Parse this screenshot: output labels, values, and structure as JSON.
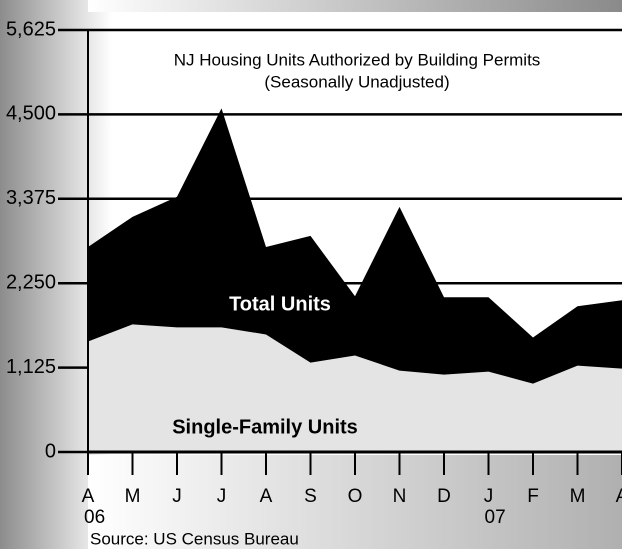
{
  "chart_data": {
    "type": "area",
    "title": "NJ Housing Units Authorized by Building Permits",
    "subtitle": "(Seasonally Unadjusted)",
    "source": "Source: US Census Bureau",
    "categories": [
      "A",
      "M",
      "J",
      "J",
      "A",
      "S",
      "O",
      "N",
      "D",
      "J",
      "F",
      "M",
      "A"
    ],
    "year_labels": [
      "06",
      null,
      null,
      null,
      null,
      null,
      null,
      null,
      null,
      "07",
      null,
      null,
      null
    ],
    "series": [
      {
        "name": "Total Units",
        "color": "#000000",
        "label_color": "#ffffff",
        "values": [
          2732,
          3134,
          3402,
          4580,
          2732,
          2880,
          2076,
          3268,
          2062,
          2062,
          1527,
          1942,
          2022
        ]
      },
      {
        "name": "Single-Family Units",
        "color": "#e4e4e4",
        "label_color": "#000000",
        "values": [
          1473,
          1701,
          1661,
          1661,
          1567,
          1192,
          1286,
          1085,
          1031,
          1071,
          911,
          1152,
          1112
        ]
      }
    ],
    "ylim": [
      0,
      5625
    ],
    "yticks": [
      0,
      {
        "value": 1125,
        "label": "1,125"
      },
      {
        "value": 2250,
        "label": "2,250"
      },
      {
        "value": 3375,
        "label": "3,375"
      },
      {
        "value": 4500,
        "label": "4,500"
      },
      {
        "value": 5625,
        "label": "5,625"
      }
    ],
    "grid": true
  }
}
